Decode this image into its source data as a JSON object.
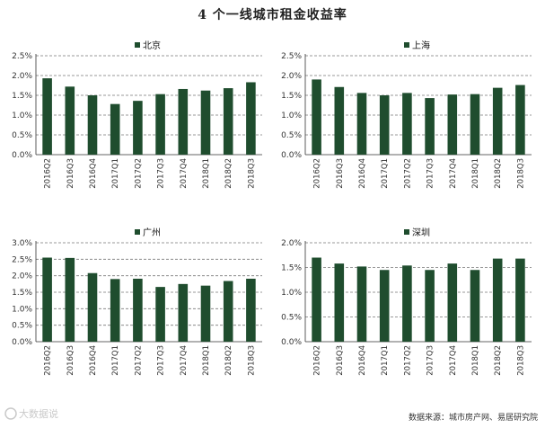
{
  "page": {
    "title": "4 个一线城市租金收益率",
    "source": "数据来源：城市房产网、易居研究院",
    "watermark": "大数据说"
  },
  "colors": {
    "bar": "#1f4d2e",
    "grid": "#7a7a7a",
    "axis": "#333333"
  },
  "chart_data": [
    {
      "type": "bar",
      "title": "北京",
      "categories": [
        "2016Q2",
        "2016Q3",
        "2016Q4",
        "2017Q1",
        "2017Q2",
        "2017Q3",
        "2017Q4",
        "2018Q1",
        "2018Q2",
        "2018Q3"
      ],
      "values": [
        1.93,
        1.72,
        1.5,
        1.28,
        1.36,
        1.53,
        1.66,
        1.62,
        1.68,
        1.83
      ],
      "ylim": [
        0,
        2.5
      ],
      "yticks": [
        0,
        0.5,
        1.0,
        1.5,
        2.0,
        2.5
      ],
      "ytick_labels": [
        "0.0%",
        "0.5%",
        "1.0%",
        "1.5%",
        "2.0%",
        "2.5%"
      ],
      "grid": true,
      "legend": "top-center"
    },
    {
      "type": "bar",
      "title": "上海",
      "categories": [
        "2016Q2",
        "2016Q3",
        "2016Q4",
        "2017Q1",
        "2017Q2",
        "2017Q3",
        "2017Q4",
        "2018Q1",
        "2018Q2",
        "2018Q3"
      ],
      "values": [
        1.9,
        1.71,
        1.56,
        1.5,
        1.56,
        1.43,
        1.52,
        1.53,
        1.69,
        1.76
      ],
      "ylim": [
        0,
        2.5
      ],
      "yticks": [
        0,
        0.5,
        1.0,
        1.5,
        2.0,
        2.5
      ],
      "ytick_labels": [
        "0.0%",
        "0.5%",
        "1.0%",
        "1.5%",
        "2.0%",
        "2.5%"
      ],
      "grid": true,
      "legend": "top-center"
    },
    {
      "type": "bar",
      "title": "广州",
      "categories": [
        "2016Q2",
        "2016Q3",
        "2016Q4",
        "2017Q1",
        "2017Q2",
        "2017Q3",
        "2017Q4",
        "2018Q1",
        "2018Q2",
        "2018Q3"
      ],
      "values": [
        2.55,
        2.54,
        2.08,
        1.9,
        1.91,
        1.66,
        1.75,
        1.7,
        1.84,
        1.91
      ],
      "ylim": [
        0,
        3.0
      ],
      "yticks": [
        0,
        0.5,
        1.0,
        1.5,
        2.0,
        2.5,
        3.0
      ],
      "ytick_labels": [
        "0.0%",
        "0.5%",
        "1.0%",
        "1.5%",
        "2.0%",
        "2.5%",
        "3.0%"
      ],
      "grid": true,
      "legend": "top-center"
    },
    {
      "type": "bar",
      "title": "深圳",
      "categories": [
        "2016Q2",
        "2016Q3",
        "2016Q4",
        "2017Q1",
        "2017Q2",
        "2017Q3",
        "2017Q4",
        "2018Q1",
        "2018Q2",
        "2018Q3"
      ],
      "values": [
        1.7,
        1.58,
        1.52,
        1.45,
        1.54,
        1.45,
        1.58,
        1.45,
        1.68,
        1.68
      ],
      "ylim": [
        0,
        2.0
      ],
      "yticks": [
        0,
        0.5,
        1.0,
        1.5,
        2.0
      ],
      "ytick_labels": [
        "0.0%",
        "0.5%",
        "1.0%",
        "1.5%",
        "2.0%"
      ],
      "grid": true,
      "legend": "top-center"
    }
  ]
}
